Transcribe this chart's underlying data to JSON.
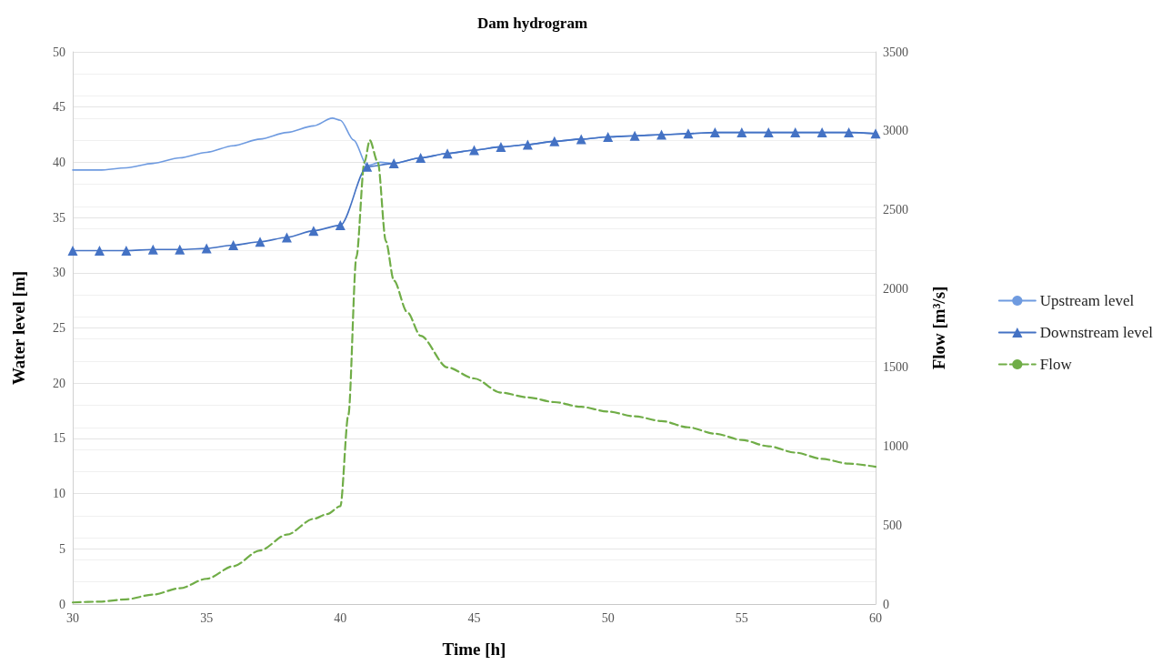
{
  "chart_data": {
    "type": "line",
    "title": "Dam hydrogram",
    "xlabel": "Time [h]",
    "ylabel": "Water level [m]",
    "y2label": "Flow [m³/s]",
    "xlim": [
      30,
      60
    ],
    "xticks": [
      30,
      35,
      40,
      45,
      50,
      55,
      60
    ],
    "ylim": [
      0,
      50
    ],
    "yticks": [
      0,
      5,
      10,
      15,
      20,
      25,
      30,
      35,
      40,
      45,
      50
    ],
    "y2lim": [
      0,
      3500
    ],
    "y2ticks": [
      0,
      500,
      1000,
      1500,
      2000,
      2500,
      3000,
      3500
    ],
    "grid": "y",
    "legend": "right",
    "series": [
      {
        "name": "Upstream level",
        "color": "#6f9be0",
        "marker": "none",
        "line_style": "solid",
        "x": [
          30,
          31,
          32,
          33,
          34,
          35,
          36,
          37,
          38,
          39,
          39.7,
          40,
          40.5,
          41,
          41.5,
          42,
          43,
          44,
          45,
          46,
          47,
          48,
          49,
          50,
          51,
          52,
          53,
          54,
          55,
          56,
          57,
          58,
          59,
          60
        ],
        "values": [
          39.3,
          39.3,
          39.5,
          39.9,
          40.4,
          40.9,
          41.5,
          42.1,
          42.7,
          43.3,
          44.0,
          43.8,
          42.0,
          39.7,
          40.0,
          39.9,
          40.4,
          40.8,
          41.1,
          41.4,
          41.6,
          41.9,
          42.1,
          42.3,
          42.4,
          42.5,
          42.6,
          42.7,
          42.7,
          42.7,
          42.7,
          42.7,
          42.7,
          42.6
        ]
      },
      {
        "name": "Downstream level",
        "color": "#4472c4",
        "marker": "triangle",
        "line_style": "solid",
        "x": [
          30,
          31,
          32,
          33,
          34,
          35,
          36,
          37,
          38,
          39,
          40,
          41,
          42,
          43,
          44,
          45,
          46,
          47,
          48,
          49,
          50,
          51,
          52,
          53,
          54,
          55,
          56,
          57,
          58,
          59,
          60
        ],
        "values": [
          32.0,
          32.0,
          32.0,
          32.1,
          32.1,
          32.2,
          32.5,
          32.8,
          33.2,
          33.8,
          34.3,
          39.6,
          39.9,
          40.4,
          40.8,
          41.1,
          41.4,
          41.6,
          41.9,
          42.1,
          42.3,
          42.4,
          42.5,
          42.6,
          42.7,
          42.7,
          42.7,
          42.7,
          42.7,
          42.7,
          42.6
        ]
      },
      {
        "name": "Flow",
        "color": "#70ad47",
        "marker": "none",
        "line_style": "dashed",
        "axis": "y2",
        "x": [
          30,
          31,
          32,
          33,
          34,
          35,
          36,
          37,
          38,
          39,
          39.5,
          40,
          40.3,
          40.6,
          40.9,
          41.1,
          41.4,
          41.7,
          42,
          42.5,
          43,
          44,
          45,
          46,
          47,
          48,
          49,
          50,
          51,
          52,
          53,
          54,
          55,
          56,
          57,
          58,
          59,
          60
        ],
        "values": [
          10,
          15,
          30,
          60,
          100,
          160,
          240,
          340,
          440,
          540,
          570,
          620,
          1200,
          2200,
          2800,
          2940,
          2800,
          2300,
          2050,
          1850,
          1700,
          1500,
          1430,
          1340,
          1310,
          1280,
          1250,
          1220,
          1190,
          1160,
          1120,
          1080,
          1040,
          1000,
          960,
          920,
          890,
          870
        ]
      }
    ]
  }
}
